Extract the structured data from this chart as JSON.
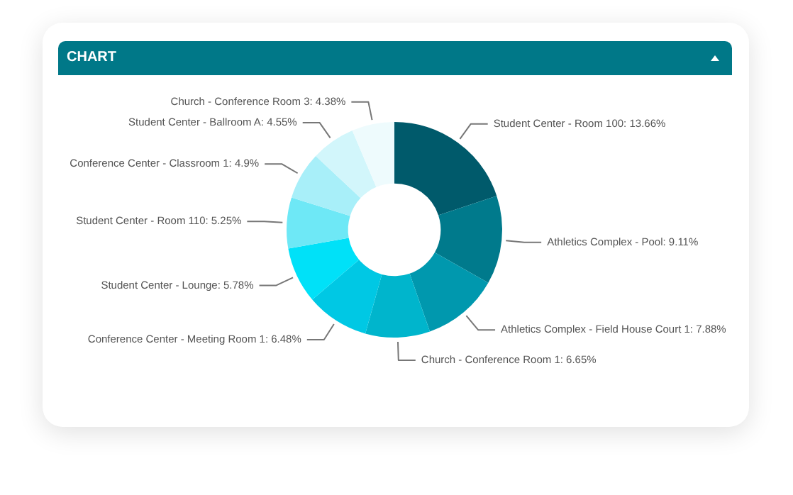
{
  "chart_data": {
    "type": "donut",
    "title": "CHART",
    "categories": [
      "Student Center - Room 100",
      "Athletics Complex - Pool",
      "Athletics Complex - Field House Court 1",
      "Church - Conference Room 1",
      "Conference Center - Meeting Room 1",
      "Student Center - Lounge",
      "Student Center - Room 110",
      "Conference Center - Classroom 1",
      "Student Center - Ballroom A",
      "Church - Conference Room 3"
    ],
    "values": [
      13.66,
      9.11,
      7.88,
      6.65,
      6.48,
      5.78,
      5.25,
      4.9,
      4.55,
      4.38
    ],
    "value_labels": [
      "13.66%",
      "9.11%",
      "7.88%",
      "6.65%",
      "6.48%",
      "5.78%",
      "5.25%",
      "4.9%",
      "4.55%",
      "4.38%"
    ],
    "colors": [
      "#005a6b",
      "#007a8c",
      "#0098ae",
      "#00b5cc",
      "#00c8e4",
      "#00e1f8",
      "#6ee8f6",
      "#a8eff9",
      "#d2f6fb",
      "#eefbfd"
    ],
    "legend": false
  }
}
